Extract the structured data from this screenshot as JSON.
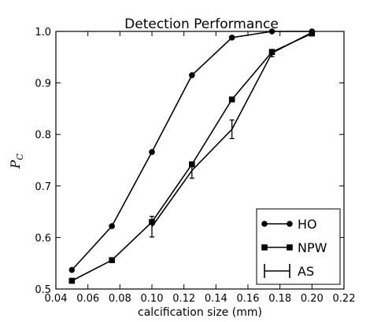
{
  "chart_data": {
    "type": "line",
    "title": "Detection Performance",
    "xlabel": "calcification size (mm)",
    "ylabel": "P",
    "ylabel_subscript": "C",
    "xlim": [
      0.04,
      0.22
    ],
    "ylim": [
      0.5,
      1.0
    ],
    "xticks": [
      0.04,
      0.06,
      0.08,
      0.1,
      0.12,
      0.14,
      0.16,
      0.18,
      0.2,
      0.22
    ],
    "xtick_labels": [
      "0.04",
      "0.06",
      "0.08",
      "0.10",
      "0.12",
      "0.14",
      "0.16",
      "0.18",
      "0.20",
      "0.22"
    ],
    "yticks": [
      0.5,
      0.6,
      0.7,
      0.8,
      0.9,
      1.0
    ],
    "ytick_labels": [
      "0.5",
      "0.6",
      "0.7",
      "0.8",
      "0.9",
      "1.0"
    ],
    "grid": false,
    "legend_position": "bottom-right",
    "series": [
      {
        "name": "HO",
        "marker": "circle",
        "x": [
          0.05,
          0.075,
          0.1,
          0.125,
          0.15,
          0.175,
          0.2
        ],
        "y": [
          0.537,
          0.622,
          0.766,
          0.915,
          0.988,
          1.0,
          1.0
        ]
      },
      {
        "name": "NPW",
        "marker": "square",
        "x": [
          0.05,
          0.075,
          0.1,
          0.125,
          0.15,
          0.175,
          0.2
        ],
        "y": [
          0.516,
          0.556,
          0.63,
          0.742,
          0.868,
          0.96,
          0.996
        ]
      },
      {
        "name": "AS",
        "marker": "errorbar",
        "x": [
          0.1,
          0.125,
          0.15,
          0.175,
          0.2
        ],
        "y": [
          0.621,
          0.73,
          0.81,
          0.958,
          0.998
        ],
        "err": [
          0.02,
          0.015,
          0.018,
          0.007,
          0.004
        ]
      }
    ],
    "colors": {
      "line": "#000000",
      "background": "#ffffff"
    }
  }
}
